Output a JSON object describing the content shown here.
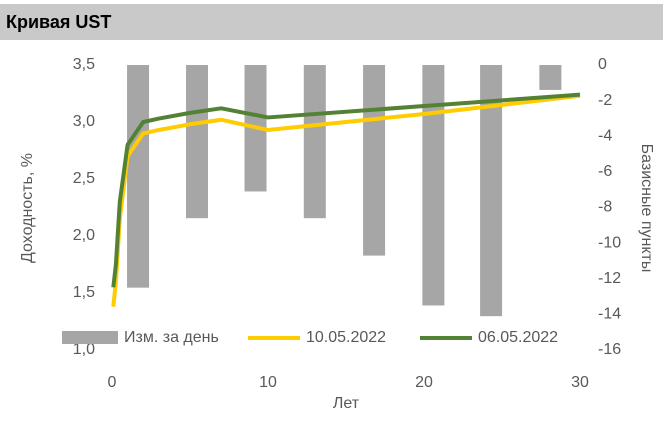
{
  "chart_data": {
    "type": "combo",
    "title": "Кривая UST",
    "xlabel": "Лет",
    "ylabel": "Доходность, %",
    "y2label": "Базисные пункты",
    "xlim": [
      0,
      30
    ],
    "xticks": [
      0,
      10,
      20,
      30
    ],
    "ylim": [
      1.0,
      3.5
    ],
    "yticks": [
      {
        "value": 1.0,
        "label": "1,0"
      },
      {
        "value": 1.5,
        "label": "1,5"
      },
      {
        "value": 2.0,
        "label": "2,0"
      },
      {
        "value": 2.5,
        "label": "2,5"
      },
      {
        "value": 3.0,
        "label": "3,0"
      },
      {
        "value": 3.5,
        "label": "3,5"
      }
    ],
    "y2lim": [
      -16,
      0
    ],
    "y2ticks": [
      0,
      -2,
      -4,
      -6,
      -8,
      -10,
      -12,
      -14,
      -16
    ],
    "series": [
      {
        "name": "Изм. за день",
        "type": "bar",
        "axis": "y2",
        "color": "#a6a6a6",
        "x": [
          1.67,
          5.45,
          9.2,
          13.0,
          16.8,
          20.6,
          24.3,
          28.1
        ],
        "values": [
          -12.5,
          -8.6,
          -7.1,
          -8.6,
          -10.7,
          -13.5,
          -14.1,
          -1.4
        ]
      },
      {
        "name": "10.05.2022",
        "type": "line",
        "color": "#ffcc00",
        "x": [
          0.083,
          0.25,
          0.5,
          1,
          2,
          3,
          5,
          7,
          10,
          20,
          30
        ],
        "values": [
          1.38,
          1.6,
          2.15,
          2.7,
          2.9,
          2.93,
          2.98,
          3.02,
          2.93,
          3.07,
          3.23
        ]
      },
      {
        "name": "06.05.2022",
        "type": "line",
        "color": "#548235",
        "x": [
          0.083,
          0.25,
          0.5,
          1,
          2,
          3,
          5,
          7,
          10,
          20,
          30
        ],
        "values": [
          1.55,
          1.75,
          2.3,
          2.8,
          3.0,
          3.03,
          3.08,
          3.12,
          3.04,
          3.14,
          3.24
        ]
      }
    ]
  }
}
